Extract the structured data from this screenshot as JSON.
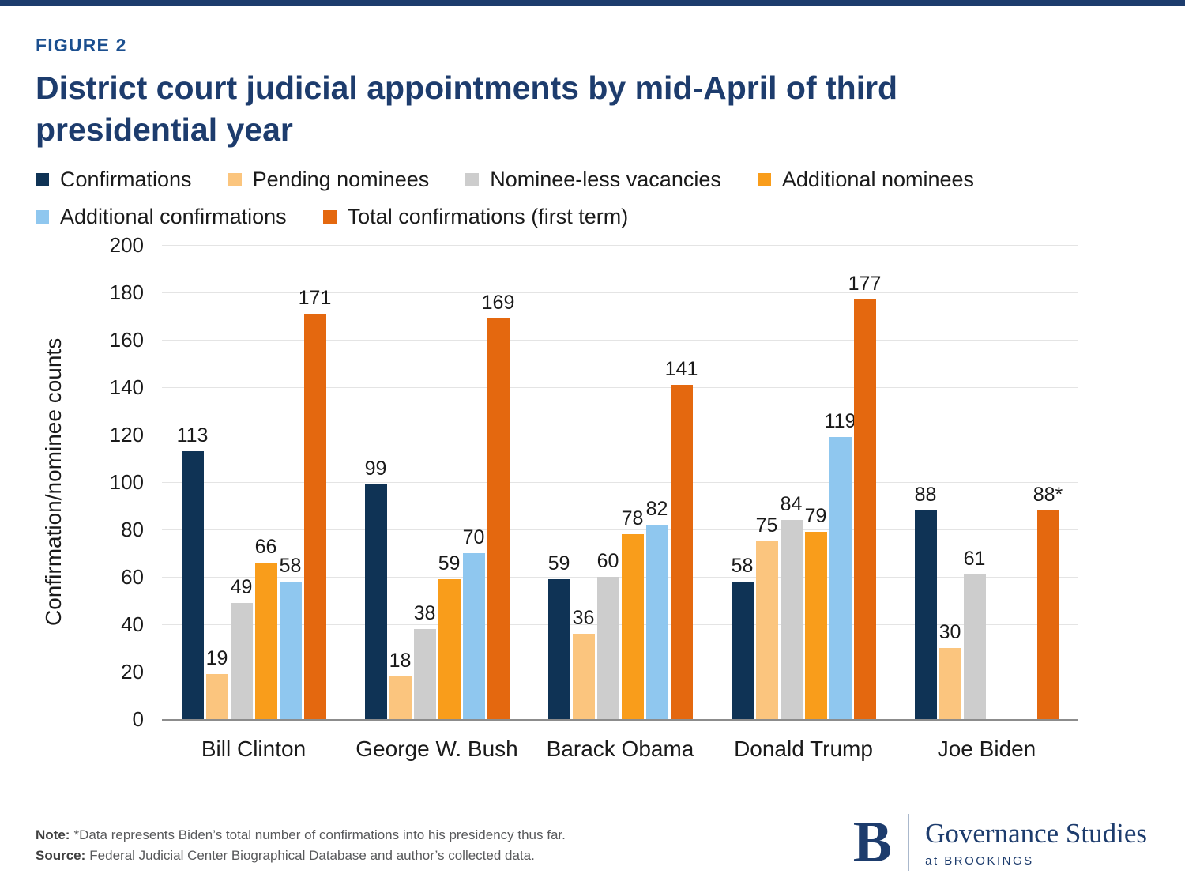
{
  "page": {
    "figure_label": "FIGURE 2",
    "title": "District court judicial appointments by mid-April of third presidential year"
  },
  "legend": {
    "rows": [
      [
        {
          "label": "Confirmations",
          "color": "#0f3355"
        },
        {
          "label": "Pending nominees",
          "color": "#fbc57e"
        },
        {
          "label": "Nominee-less vacancies",
          "color": "#cdcdcd"
        },
        {
          "label": "Additional nominees",
          "color": "#f99d1b"
        }
      ],
      [
        {
          "label": "Additional confirmations",
          "color": "#8fc7ef"
        },
        {
          "label": "Total confirmations (first term)",
          "color": "#e4680f"
        }
      ]
    ]
  },
  "chart_data": {
    "type": "bar",
    "title": "District court judicial appointments by mid-April of third presidential year",
    "xlabel": "",
    "ylabel": "Confirmation/nominee counts",
    "ylim": [
      0,
      200
    ],
    "ytick_step": 20,
    "grid": true,
    "legend_position": "top",
    "categories": [
      "Bill Clinton",
      "George W. Bush",
      "Barack Obama",
      "Donald Trump",
      "Joe Biden"
    ],
    "series": [
      {
        "name": "Confirmations",
        "color": "#0f3355",
        "values": [
          113,
          99,
          59,
          58,
          88
        ]
      },
      {
        "name": "Pending nominees",
        "color": "#fbc57e",
        "values": [
          19,
          18,
          36,
          75,
          30
        ]
      },
      {
        "name": "Nominee-less vacancies",
        "color": "#cdcdcd",
        "values": [
          49,
          38,
          60,
          84,
          61
        ]
      },
      {
        "name": "Additional nominees",
        "color": "#f99d1b",
        "values": [
          66,
          59,
          78,
          79,
          null
        ]
      },
      {
        "name": "Additional confirmations",
        "color": "#8fc7ef",
        "values": [
          58,
          70,
          82,
          119,
          null
        ]
      },
      {
        "name": "Total confirmations (first term)",
        "color": "#e4680f",
        "values": [
          171,
          169,
          141,
          177,
          88
        ],
        "display_labels": [
          "171",
          "169",
          "141",
          "177",
          "88*"
        ]
      }
    ]
  },
  "footer": {
    "note_label": "Note:",
    "note_text": "*Data represents Biden’s total number of confirmations into his presidency thus far.",
    "source_label": "Source:",
    "source_text": "Federal Judicial Center Biographical Database and author’s collected data.",
    "logo": {
      "letter": "B",
      "name": "Governance Studies",
      "tagline": "at BROOKINGS"
    }
  }
}
